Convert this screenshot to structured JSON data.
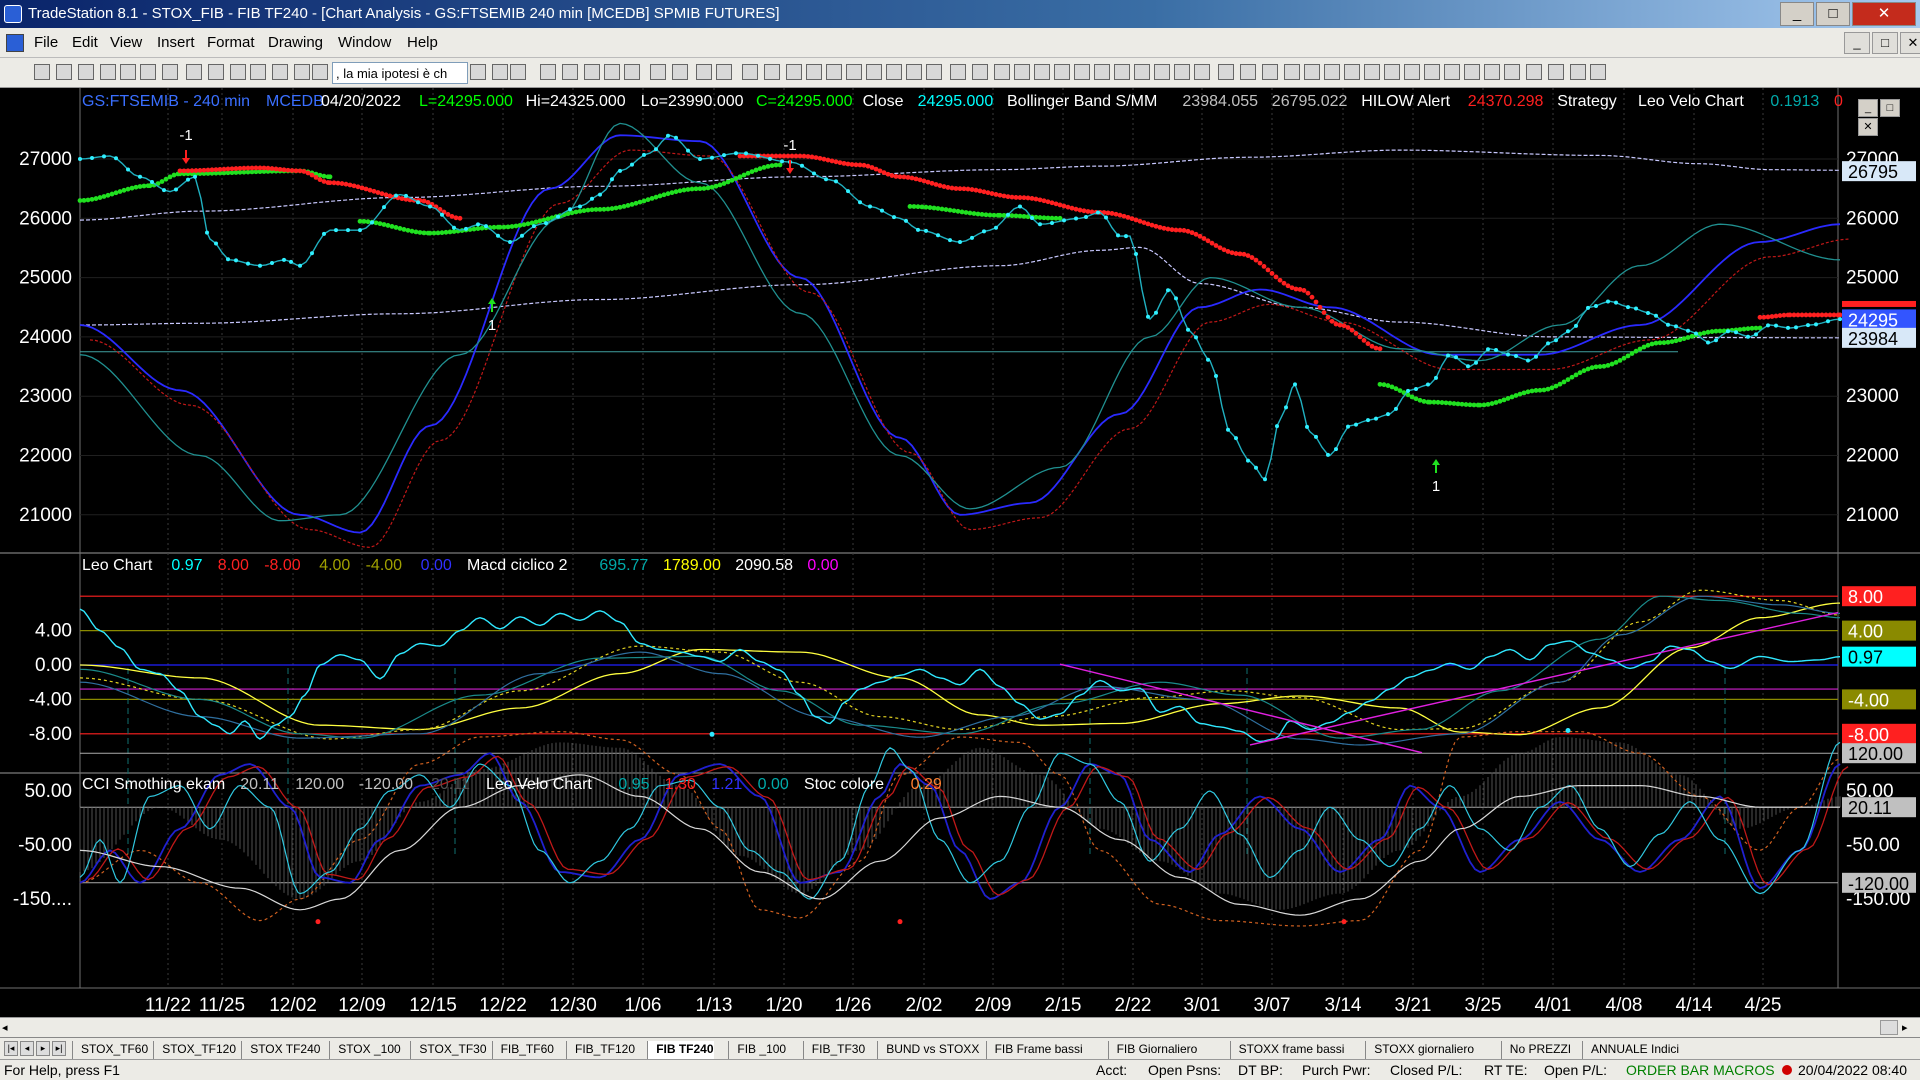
{
  "window": {
    "title": "TradeStation 8.1 - STOX_FIB - FIB TF240 - [Chart Analysis - GS:FTSEMIB  240 min  [MCEDB] SPMIB FUTURES]",
    "btn_min": "_",
    "btn_max": "□",
    "btn_close": "✕"
  },
  "menu": {
    "items": [
      "File",
      "Edit",
      "View",
      "Insert",
      "Format",
      "Drawing",
      "Window",
      "Help"
    ]
  },
  "toolbar": {
    "combo_value": ", la mia ipotesi è ch"
  },
  "price_header": [
    {
      "t": "GS:FTSEMIB - 240 min",
      "c": "#3a6fff"
    },
    {
      "t": "MCEDB",
      "c": "#3a6fff"
    },
    {
      "t": "04/20/2022",
      "c": "#ffffff"
    },
    {
      "t": "L=24295.000",
      "c": "#00ff00"
    },
    {
      "t": "Hi=24325.000",
      "c": "#ffffff"
    },
    {
      "t": "Lo=23990.000",
      "c": "#ffffff"
    },
    {
      "t": "C=24295.000",
      "c": "#00ff00"
    },
    {
      "t": "Close",
      "c": "#ffffff"
    },
    {
      "t": "24295.000",
      "c": "#00ffff"
    },
    {
      "t": "Bollinger Band S/MM",
      "c": "#ffffff"
    },
    {
      "t": "23984.055",
      "c": "#c0c0c0"
    },
    {
      "t": "26795.022",
      "c": "#c0c0c0"
    },
    {
      "t": "HILOW Alert",
      "c": "#ffffff"
    },
    {
      "t": "24370.298",
      "c": "#ff2020"
    },
    {
      "t": "Strategy",
      "c": "#ffffff"
    },
    {
      "t": "Leo Velo Chart",
      "c": "#ffffff"
    },
    {
      "t": "0.1913",
      "c": "#00aaaa"
    },
    {
      "t": "0",
      "c": "#ff2020"
    }
  ],
  "macd_header": [
    {
      "t": "Leo Chart",
      "c": "#ffffff"
    },
    {
      "t": "0.97",
      "c": "#00ffff"
    },
    {
      "t": "8.00",
      "c": "#ff2020"
    },
    {
      "t": "-8.00",
      "c": "#ff2020"
    },
    {
      "t": "4.00",
      "c": "#a0a000"
    },
    {
      "t": "-4.00",
      "c": "#a0a000"
    },
    {
      "t": "0.00",
      "c": "#3030ff"
    },
    {
      "t": "Macd ciclico 2",
      "c": "#ffffff"
    },
    {
      "t": "695.77",
      "c": "#00aaaa"
    },
    {
      "t": "1789.00",
      "c": "#ffff00"
    },
    {
      "t": "2090.58",
      "c": "#ffffff"
    },
    {
      "t": "0.00",
      "c": "#ff00ff"
    }
  ],
  "cci_header": [
    {
      "t": "CCI Smothing ekam",
      "c": "#ffffff"
    },
    {
      "t": "20.11",
      "c": "#c0c0c0"
    },
    {
      "t": "120.00",
      "c": "#c0c0c0"
    },
    {
      "t": "-120.00",
      "c": "#c0c0c0"
    },
    {
      "t": "20.11",
      "c": "#505050"
    },
    {
      "t": "Leo Velo Chart",
      "c": "#ffffff"
    },
    {
      "t": "0.95",
      "c": "#00aaaa"
    },
    {
      "t": "1.30",
      "c": "#ff2020"
    },
    {
      "t": "1.21",
      "c": "#3030ff"
    },
    {
      "t": "0.00",
      "c": "#00aaaa"
    },
    {
      "t": "Stoc colore",
      "c": "#ffffff"
    },
    {
      "t": "0.29",
      "c": "#ff8030"
    }
  ],
  "price_axis": [
    "27000",
    "26000",
    "25000",
    "24000",
    "23000",
    "22000",
    "21000"
  ],
  "price_axis_right": [
    "27000",
    "26000",
    "25000",
    "23000",
    "22000",
    "21000"
  ],
  "price_badges": [
    {
      "t": "26795",
      "bg": "#d8e8f8",
      "fg": "#000000"
    },
    {
      "t": "24295",
      "bg": "#3355ff",
      "fg": "#ffffff"
    },
    {
      "t": "23984",
      "bg": "#d8e8f8",
      "fg": "#000000"
    }
  ],
  "macd_axis": [
    "4.00",
    "0.00",
    "-4.00",
    "-8.00"
  ],
  "macd_badges": [
    {
      "t": "8.00",
      "bg": "#ff2020",
      "fg": "#ffffff"
    },
    {
      "t": "4.00",
      "bg": "#8a8a00",
      "fg": "#ffffff"
    },
    {
      "t": "0.97",
      "bg": "#00ffff",
      "fg": "#000000"
    },
    {
      "t": "-4.00",
      "bg": "#8a8a00",
      "fg": "#ffffff"
    },
    {
      "t": "-8.00",
      "bg": "#ff2020",
      "fg": "#ffffff"
    }
  ],
  "cci_axis": [
    "50.00",
    "-50.00",
    "-150...."
  ],
  "cci_axis_right": [
    "50.00",
    "-50.00",
    "-150.00"
  ],
  "cci_badges": [
    {
      "t": "120.00",
      "bg": "#c0c0c0",
      "fg": "#000000"
    },
    {
      "t": "20.11",
      "bg": "#c0c0c0",
      "fg": "#000000"
    },
    {
      "t": "-120.00",
      "bg": "#c0c0c0",
      "fg": "#000000"
    }
  ],
  "date_axis": [
    "11/22",
    "11/25",
    "12/02",
    "12/09",
    "12/15",
    "12/22",
    "12/30",
    "1/06",
    "1/13",
    "1/20",
    "1/26",
    "2/02",
    "2/09",
    "2/15",
    "2/22",
    "3/01",
    "3/07",
    "3/14",
    "3/21",
    "3/25",
    "4/01",
    "4/08",
    "4/14",
    "4/25"
  ],
  "signals": [
    {
      "t": "-1",
      "c": "#ffffff"
    },
    {
      "t": "1",
      "c": "#ffffff"
    },
    {
      "t": "-1",
      "c": "#ffffff"
    },
    {
      "t": "1",
      "c": "#ffffff"
    }
  ],
  "tabs": [
    "STOX_TF60",
    "STOX_TF120",
    "STOX TF240",
    "STOX _100",
    "STOX_TF30",
    "FIB_TF60",
    "FIB_TF120",
    "FIB TF240",
    "FIB _100",
    "FIB_TF30",
    "BUND vs STOXX",
    "FIB Frame bassi",
    "FIB Giornaliero",
    "STOXX frame bassi",
    "STOXX giornaliero",
    "No PREZZI",
    "ANNUALE Indici"
  ],
  "active_tab": "FIB TF240",
  "status": {
    "help": "For Help, press F1",
    "acct": "Acct:",
    "open_psns": "Open Psns:",
    "dt_bp": "DT BP:",
    "purch_pwr": "Purch Pwr:",
    "closed_pl": "Closed P/L:",
    "rt_te": "RT TE:",
    "open_pl": "Open P/L:",
    "macros": "ORDER BAR  MACROS",
    "datetime": "20/04/2022 08:40"
  }
}
